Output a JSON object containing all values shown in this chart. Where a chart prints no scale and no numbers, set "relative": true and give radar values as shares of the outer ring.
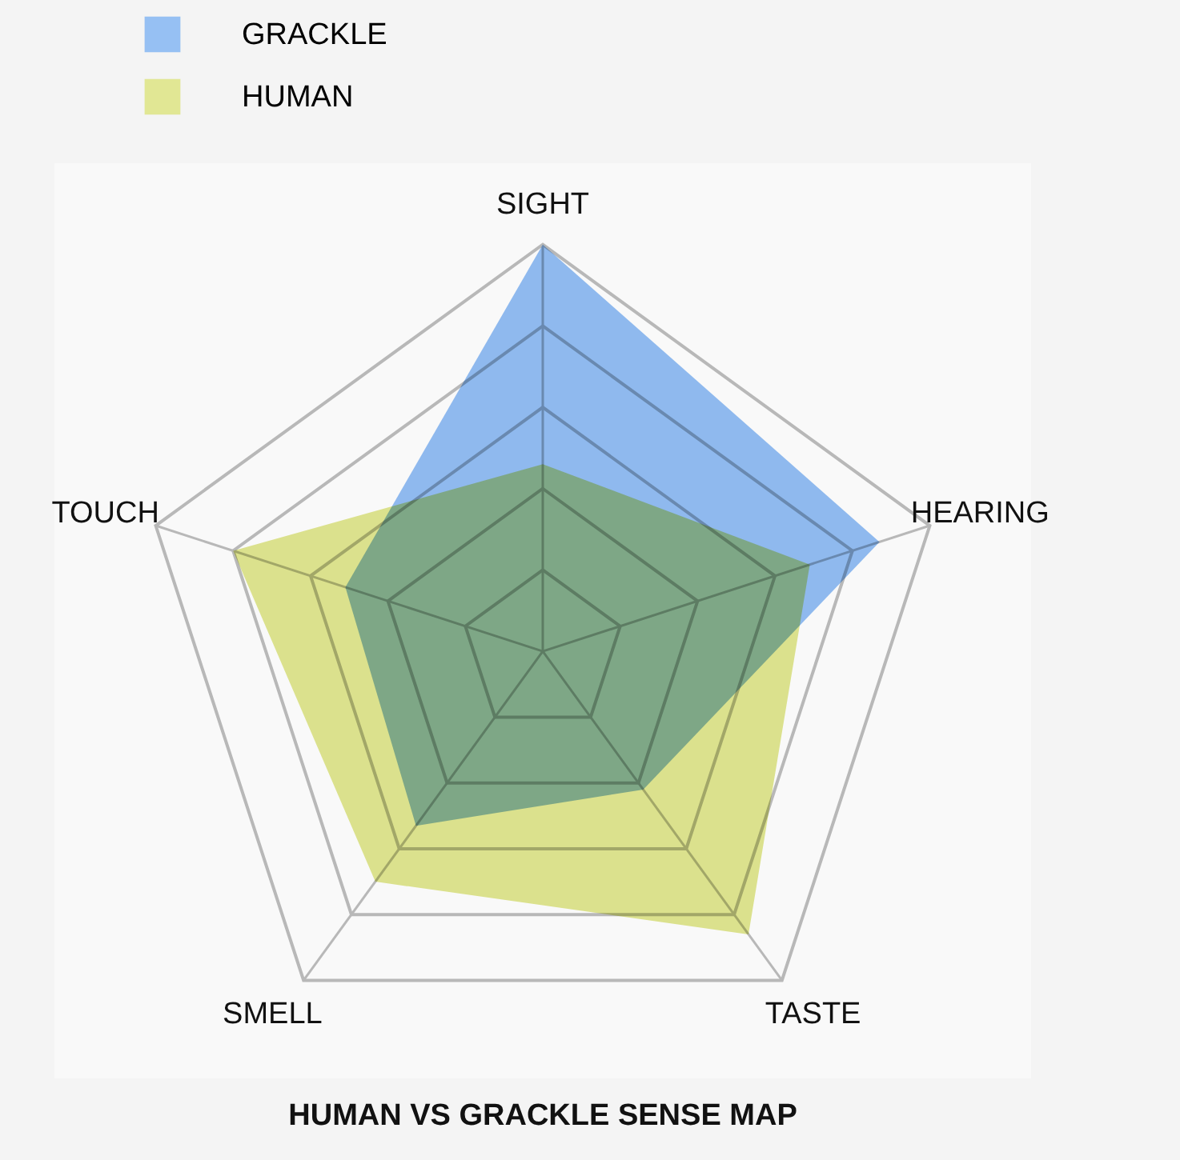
{
  "chart_data": {
    "type": "radar",
    "title": "HUMAN VS GRACKLE SENSE MAP",
    "relative": true,
    "grid": true,
    "legend": "top left",
    "categories": [
      "SIGHT",
      "HEARING",
      "TASTE",
      "SMELL",
      "TOUCH"
    ],
    "series": [
      {
        "name": "GRACKLE",
        "color": "#8cbaf3",
        "values": [
          1.0,
          0.87,
          0.42,
          0.53,
          0.51
        ]
      },
      {
        "name": "HUMAN",
        "color": "#dfe68a",
        "values": [
          0.46,
          0.69,
          0.86,
          0.7,
          0.8
        ]
      }
    ]
  }
}
